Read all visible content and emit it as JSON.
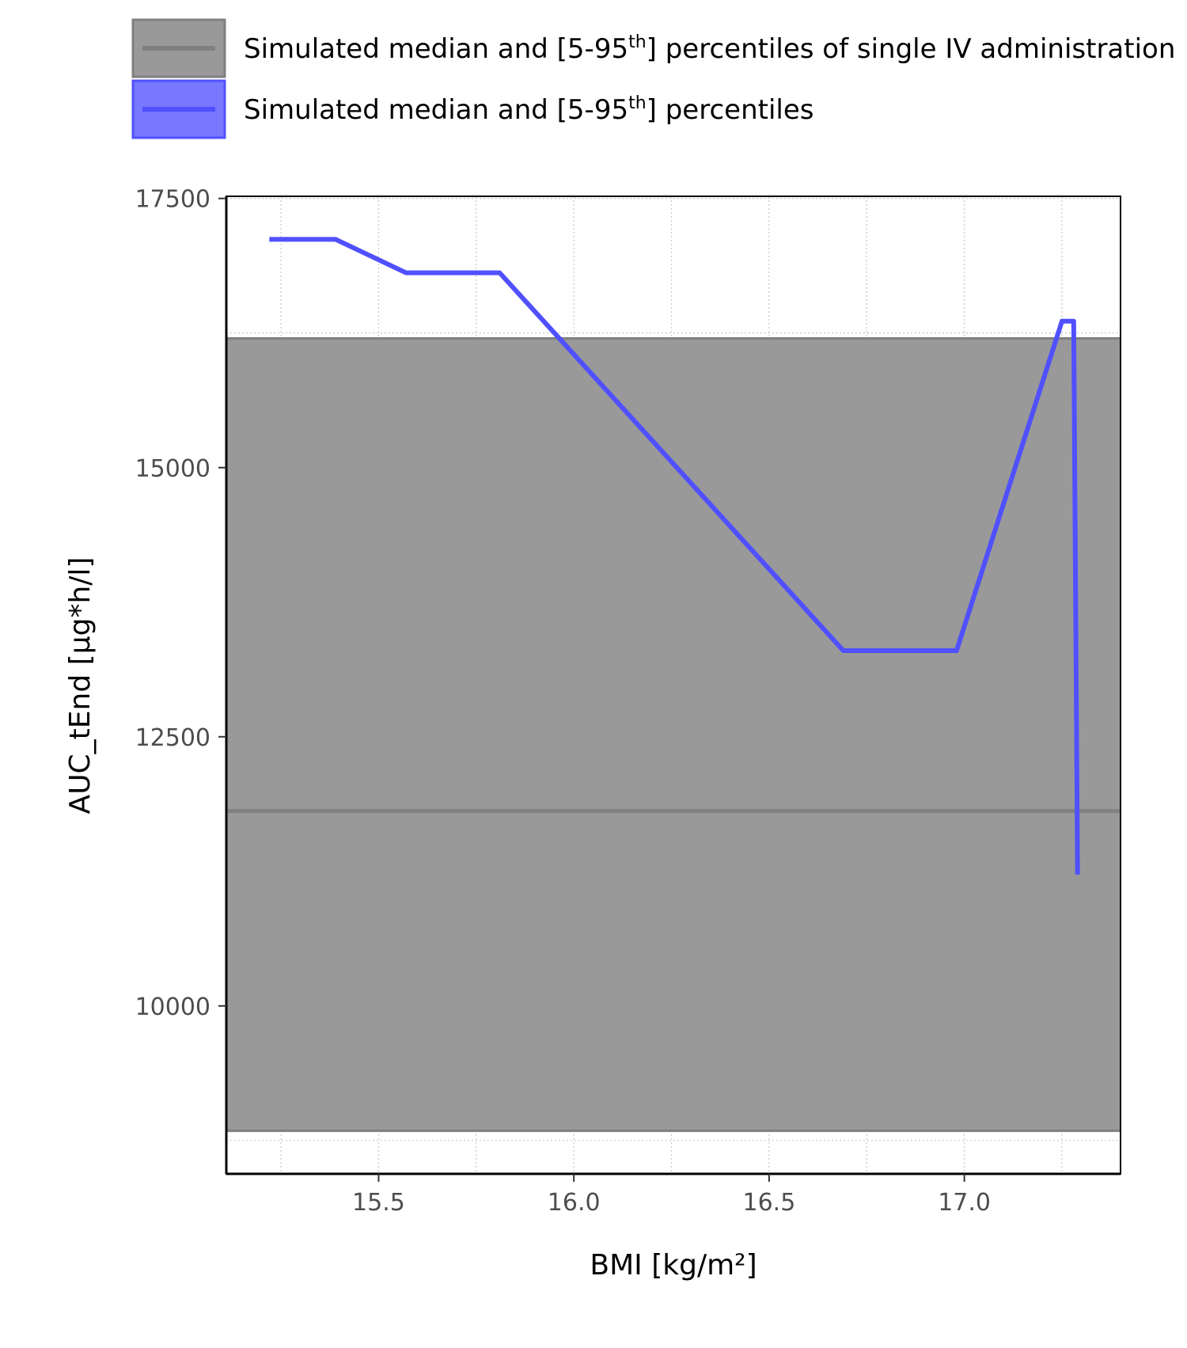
{
  "chart_data": {
    "type": "line",
    "xlabel": "BMI [kg/m²]",
    "ylabel": "AUC_tEnd [µg*h/l]",
    "xlim": [
      15.11,
      17.4
    ],
    "ylim": [
      8440,
      17520
    ],
    "x_ticks": [
      15.5,
      16.0,
      16.5,
      17.0
    ],
    "x_tick_labels": [
      "15.5",
      "16.0",
      "16.5",
      "17.0"
    ],
    "y_ticks": [
      10000,
      12500,
      15000,
      17500
    ],
    "y_tick_labels": [
      "10000",
      "12500",
      "15000",
      "17500"
    ],
    "grid": true,
    "legend_position": "top",
    "legend": [
      {
        "label": "Simulated median and [5-95th] percentiles of single IV administration",
        "color": "#808080",
        "fill": "#999999"
      },
      {
        "label": "Simulated median and [5-95th] percentiles",
        "color": "#5050FF",
        "fill": "#7777FF"
      }
    ],
    "reference_band": {
      "name": "Simulated median and [5-95th] percentiles of single IV administration",
      "median": 11810,
      "p5": 8840,
      "p95": 16200,
      "color": "#808080",
      "fill": "#999999"
    },
    "series": [
      {
        "name": "Simulated median and [5-95th] percentiles",
        "color": "#5050FF",
        "x": [
          15.22,
          15.39,
          15.57,
          15.81,
          16.69,
          16.98,
          17.25,
          17.28,
          17.29
        ],
        "y": [
          17120,
          17120,
          16810,
          16810,
          13300,
          13300,
          16360,
          16360,
          11220
        ]
      }
    ]
  }
}
